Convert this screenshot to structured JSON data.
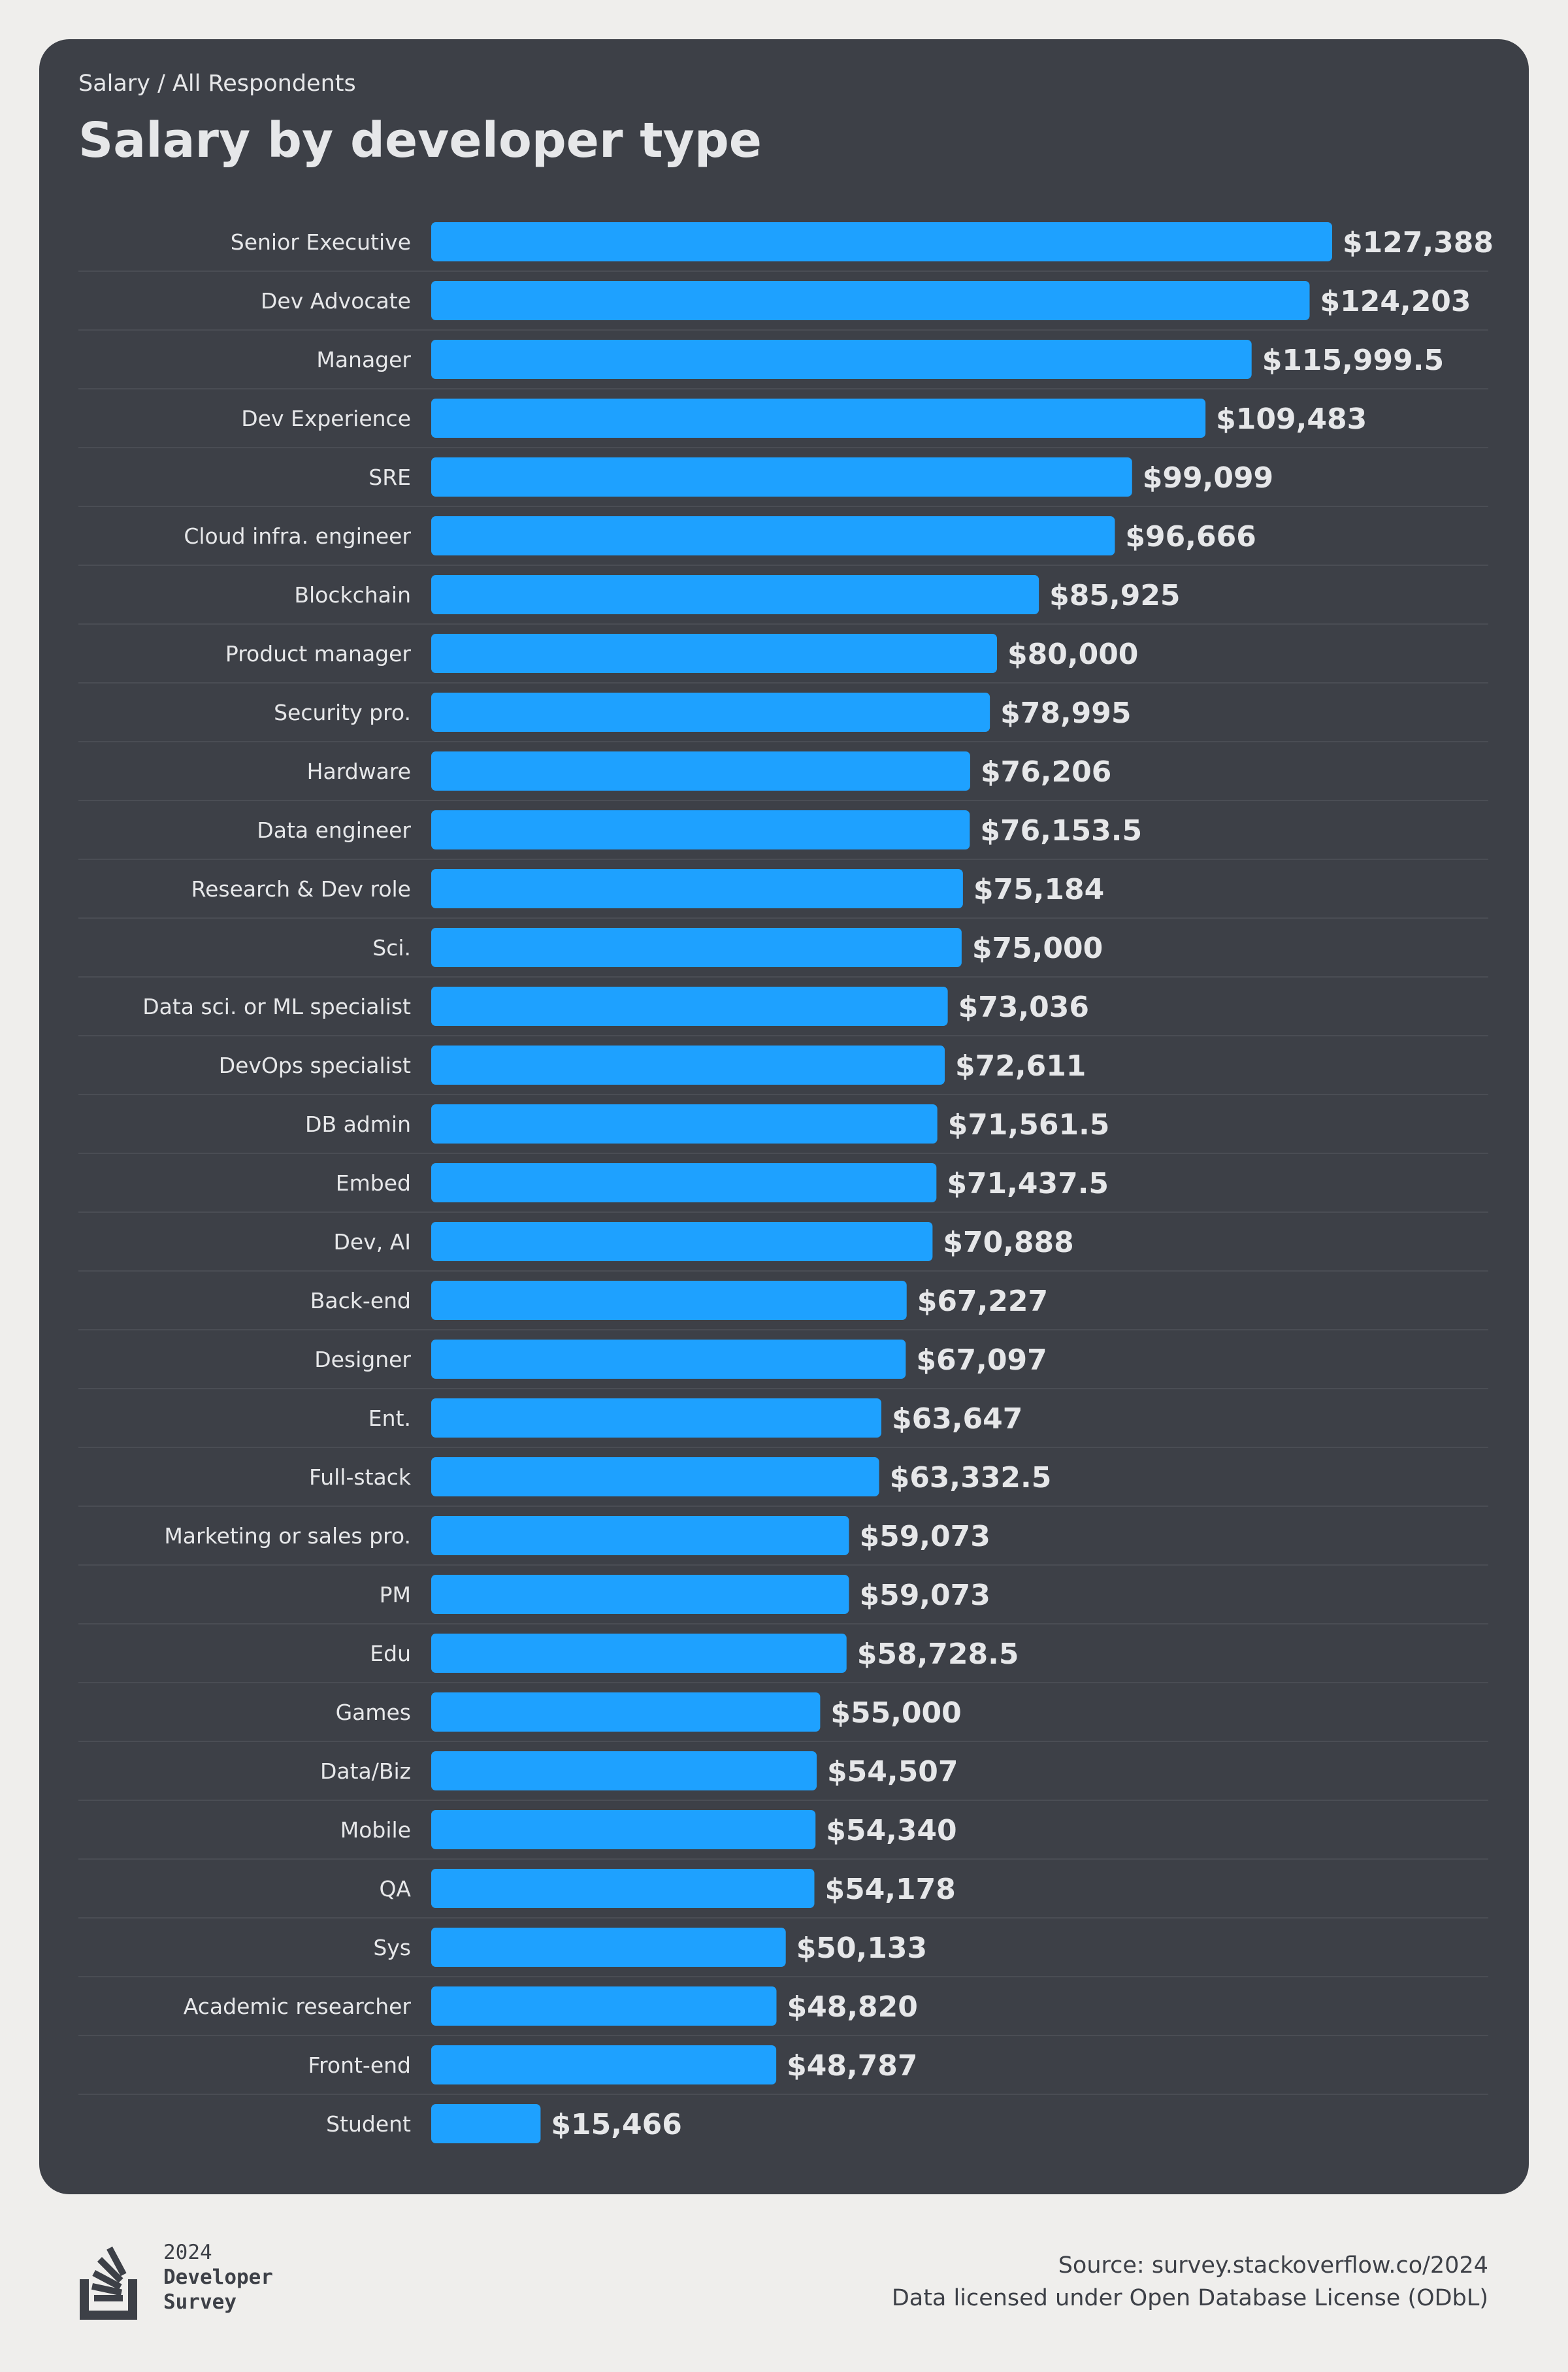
{
  "header": {
    "breadcrumb": "Salary / All Respondents"
  },
  "footer": {
    "logo": {
      "year": "2024",
      "line1": "Developer",
      "line2": "Survey"
    },
    "source": "Source: survey.stackoverflow.co/2024",
    "license": "Data licensed under Open Database License (ODbL)"
  },
  "colors": {
    "bar": "#1ea1ff",
    "card": "#3d4047",
    "background": "#efeeec",
    "text": "#e6e7e9"
  },
  "chart_data": {
    "type": "bar",
    "orientation": "horizontal",
    "title": "Salary by developer type",
    "xlabel": "",
    "ylabel": "",
    "xlim": [
      0,
      127388
    ],
    "grid": false,
    "categories": [
      "Senior Executive",
      "Dev Advocate",
      "Manager",
      "Dev Experience",
      "SRE",
      "Cloud infra. engineer",
      "Blockchain",
      "Product manager",
      "Security pro.",
      "Hardware",
      "Data engineer",
      "Research & Dev role",
      "Sci.",
      "Data sci. or ML specialist",
      "DevOps specialist",
      "DB admin",
      "Embed",
      "Dev, AI",
      "Back-end",
      "Designer",
      "Ent.",
      "Full-stack",
      "Marketing or sales pro.",
      "PM",
      "Edu",
      "Games",
      "Data/Biz",
      "Mobile",
      "QA",
      "Sys",
      "Academic researcher",
      "Front-end",
      "Student"
    ],
    "values": [
      127388,
      124203,
      115999.5,
      109483,
      99099,
      96666,
      85925,
      80000,
      78995,
      76206,
      76153.5,
      75184,
      75000,
      73036,
      72611,
      71561.5,
      71437.5,
      70888,
      67227,
      67097,
      63647,
      63332.5,
      59073,
      59073,
      58728.5,
      55000,
      54507,
      54340,
      54178,
      50133,
      48820,
      48787,
      15466
    ],
    "labels": [
      "$127,388",
      "$124,203",
      "$115,999.5",
      "$109,483",
      "$99,099",
      "$96,666",
      "$85,925",
      "$80,000",
      "$78,995",
      "$76,206",
      "$76,153.5",
      "$75,184",
      "$75,000",
      "$73,036",
      "$72,611",
      "$71,561.5",
      "$71,437.5",
      "$70,888",
      "$67,227",
      "$67,097",
      "$63,647",
      "$63,332.5",
      "$59,073",
      "$59,073",
      "$58,728.5",
      "$55,000",
      "$54,507",
      "$54,340",
      "$54,178",
      "$50,133",
      "$48,820",
      "$48,787",
      "$15,466"
    ]
  }
}
